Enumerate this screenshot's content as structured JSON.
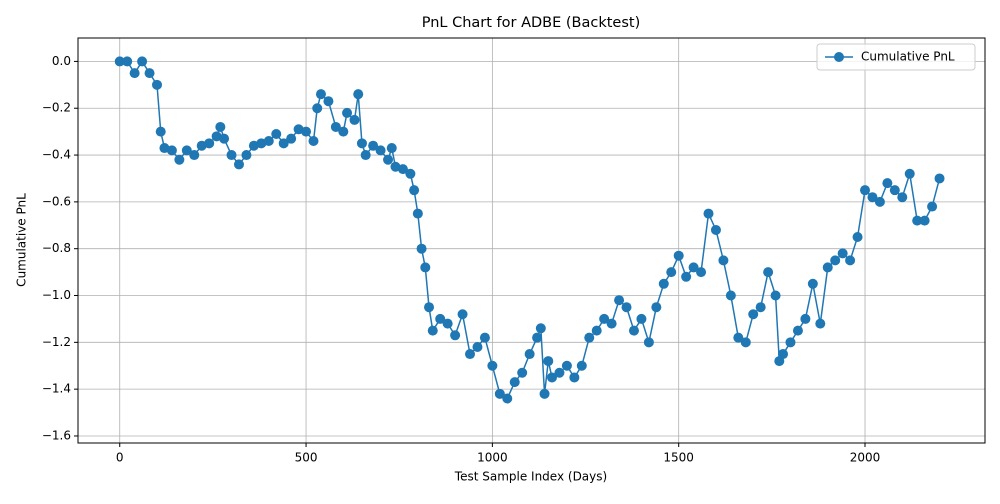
{
  "chart_data": {
    "type": "line",
    "title": "PnL Chart for ADBE (Backtest)",
    "xlabel": "Test Sample Index (Days)",
    "ylabel": "Cumulative PnL",
    "x": [
      0,
      20,
      40,
      60,
      80,
      100,
      110,
      120,
      140,
      160,
      180,
      200,
      220,
      240,
      260,
      270,
      280,
      300,
      320,
      340,
      360,
      380,
      400,
      420,
      440,
      460,
      480,
      500,
      520,
      530,
      540,
      560,
      580,
      600,
      610,
      630,
      640,
      650,
      660,
      680,
      700,
      720,
      730,
      740,
      760,
      780,
      790,
      800,
      810,
      820,
      830,
      840,
      860,
      880,
      900,
      920,
      940,
      960,
      980,
      1000,
      1020,
      1040,
      1060,
      1080,
      1100,
      1120,
      1130,
      1140,
      1150,
      1160,
      1180,
      1200,
      1220,
      1240,
      1260,
      1280,
      1300,
      1320,
      1340,
      1360,
      1380,
      1400,
      1420,
      1440,
      1460,
      1480,
      1500,
      1520,
      1540,
      1560,
      1580,
      1600,
      1620,
      1640,
      1660,
      1680,
      1700,
      1720,
      1740,
      1760,
      1770,
      1780,
      1800,
      1820,
      1840,
      1860,
      1880,
      1900,
      1920,
      1940,
      1960,
      1980,
      2000,
      2020,
      2040,
      2060,
      2080,
      2100,
      2120,
      2140,
      2160,
      2180,
      2200
    ],
    "series": [
      {
        "name": "Cumulative PnL",
        "color": "#1f77b4",
        "values": [
          0.0,
          0.0,
          -0.05,
          0.0,
          -0.05,
          -0.1,
          -0.3,
          -0.37,
          -0.38,
          -0.42,
          -0.38,
          -0.4,
          -0.36,
          -0.35,
          -0.32,
          -0.28,
          -0.33,
          -0.4,
          -0.44,
          -0.4,
          -0.36,
          -0.35,
          -0.34,
          -0.31,
          -0.35,
          -0.33,
          -0.29,
          -0.3,
          -0.34,
          -0.2,
          -0.14,
          -0.17,
          -0.28,
          -0.3,
          -0.22,
          -0.25,
          -0.14,
          -0.35,
          -0.4,
          -0.36,
          -0.38,
          -0.42,
          -0.37,
          -0.45,
          -0.46,
          -0.48,
          -0.55,
          -0.65,
          -0.8,
          -0.88,
          -1.05,
          -1.15,
          -1.1,
          -1.12,
          -1.17,
          -1.08,
          -1.25,
          -1.22,
          -1.18,
          -1.3,
          -1.42,
          -1.44,
          -1.37,
          -1.33,
          -1.25,
          -1.18,
          -1.14,
          -1.42,
          -1.28,
          -1.35,
          -1.33,
          -1.3,
          -1.35,
          -1.3,
          -1.18,
          -1.15,
          -1.1,
          -1.12,
          -1.02,
          -1.05,
          -1.15,
          -1.1,
          -1.2,
          -1.05,
          -0.95,
          -0.9,
          -0.83,
          -0.92,
          -0.88,
          -0.9,
          -0.65,
          -0.72,
          -0.85,
          -1.0,
          -1.18,
          -1.2,
          -1.08,
          -1.05,
          -0.9,
          -1.0,
          -1.28,
          -1.25,
          -1.2,
          -1.15,
          -1.1,
          -0.95,
          -1.12,
          -0.88,
          -0.85,
          -0.82,
          -0.85,
          -0.75,
          -0.55,
          -0.58,
          -0.6,
          -0.52,
          -0.55,
          -0.58,
          -0.48,
          -0.68,
          -0.68,
          -0.62,
          -0.5
        ]
      }
    ],
    "xlim": [
      -112,
      2322
    ],
    "ylim": [
      -1.63,
      0.1
    ],
    "xticks": [
      0,
      500,
      1000,
      1500,
      2000
    ],
    "yticks": [
      {
        "value": 0,
        "label": "0.0"
      },
      {
        "value": -0.2,
        "label": "−0.2"
      },
      {
        "value": -0.4,
        "label": "−0.4"
      },
      {
        "value": -0.6,
        "label": "−0.6"
      },
      {
        "value": -0.8,
        "label": "−0.8"
      },
      {
        "value": -1.0,
        "label": "−1.0"
      },
      {
        "value": -1.2,
        "label": "−1.2"
      },
      {
        "value": -1.4,
        "label": "−1.4"
      },
      {
        "value": -1.6,
        "label": "−1.6"
      }
    ],
    "grid": true,
    "legend": "upper-right"
  }
}
